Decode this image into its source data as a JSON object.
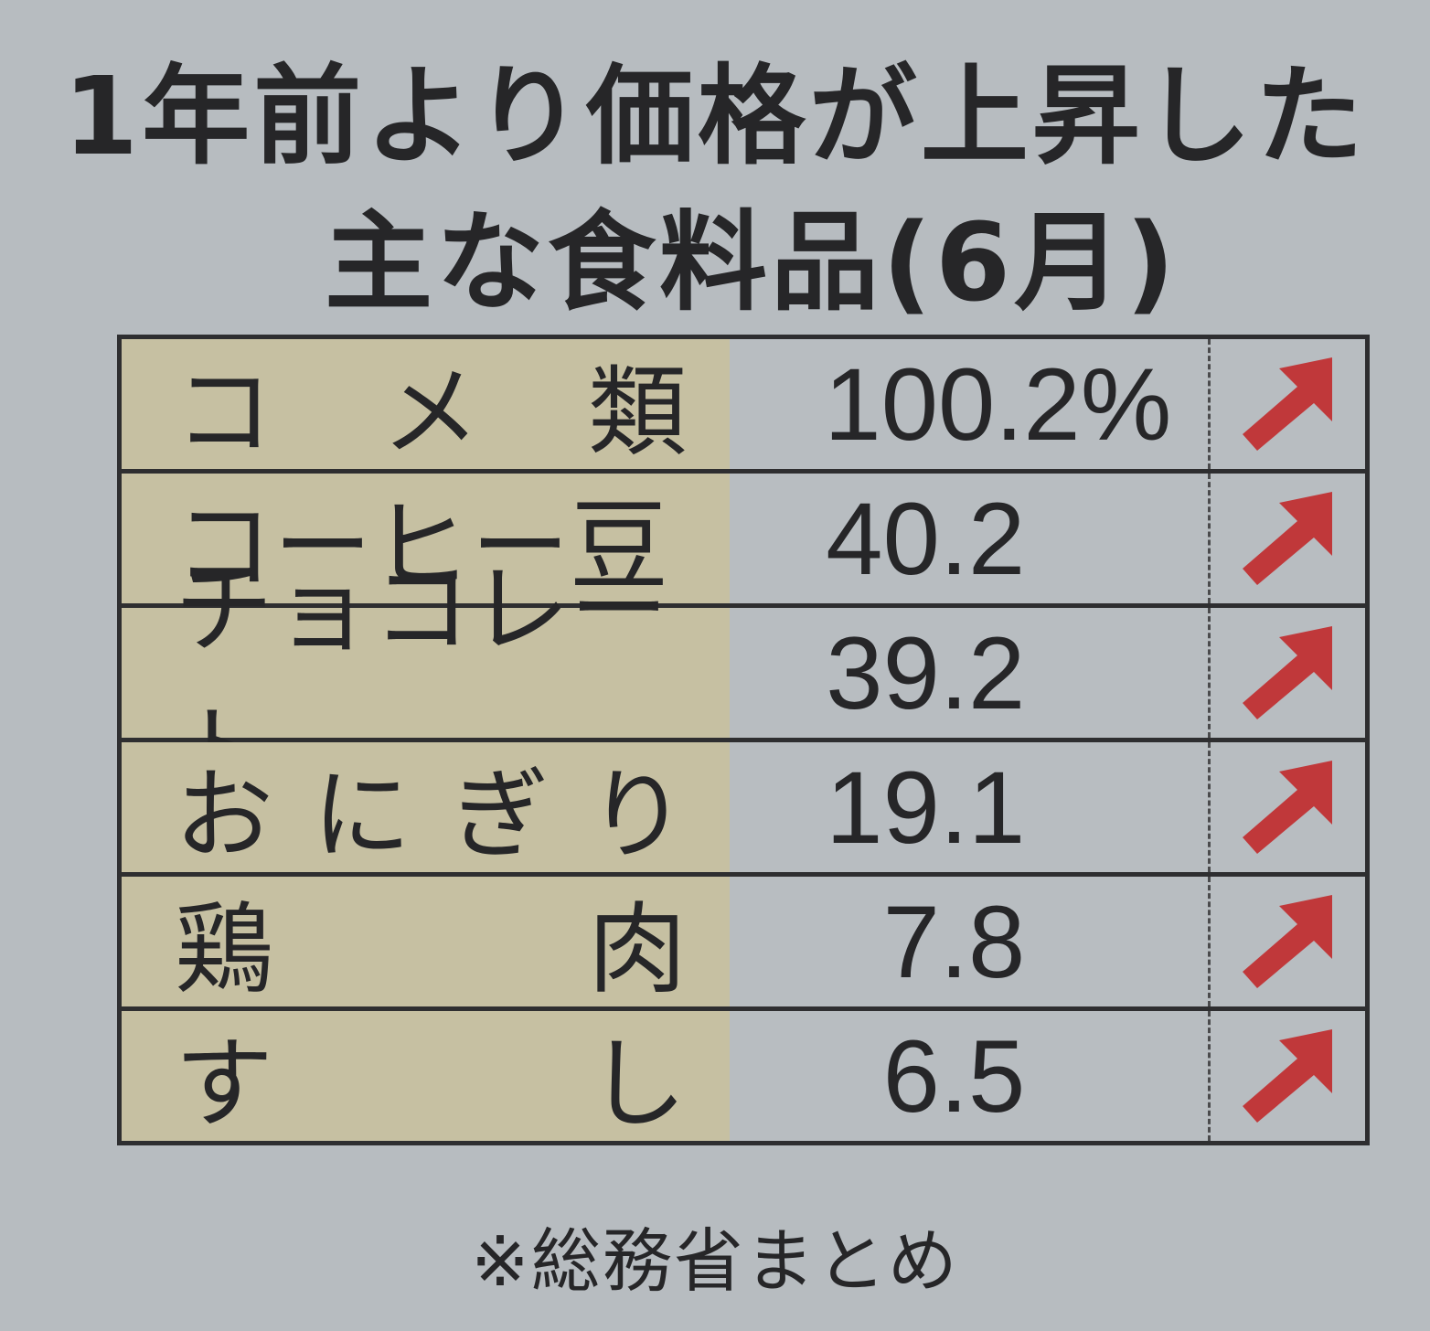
{
  "title": {
    "line1": "1年前より価格が上昇した",
    "line2": "主な食料品(6月)"
  },
  "rows": [
    {
      "name": "コメ類",
      "chars": [
        "コ",
        "メ",
        "類"
      ],
      "value": "100.2%",
      "trend": "up-arrow-icon"
    },
    {
      "name": "コーヒー豆",
      "chars": [
        "コーヒー豆"
      ],
      "value": "40.2",
      "trend": "up-arrow-icon"
    },
    {
      "name": "チョコレート",
      "chars": [
        "チョコレート"
      ],
      "value": "39.2",
      "trend": "up-arrow-icon"
    },
    {
      "name": "おにぎり",
      "chars": [
        "お",
        "に",
        "ぎ",
        "り"
      ],
      "value": "19.1",
      "trend": "up-arrow-icon"
    },
    {
      "name": "鶏肉",
      "chars": [
        "鶏",
        "肉"
      ],
      "value": "7.8",
      "trend": "up-arrow-icon"
    },
    {
      "name": "すし",
      "chars": [
        "す",
        "し"
      ],
      "value": "6.5",
      "trend": "up-arrow-icon"
    }
  ],
  "footnote": "※総務省まとめ",
  "colors": {
    "background": "#b7bcc0",
    "name_cell": "#c6c0a2",
    "arrow": "#c0383a",
    "text": "#262628"
  }
}
